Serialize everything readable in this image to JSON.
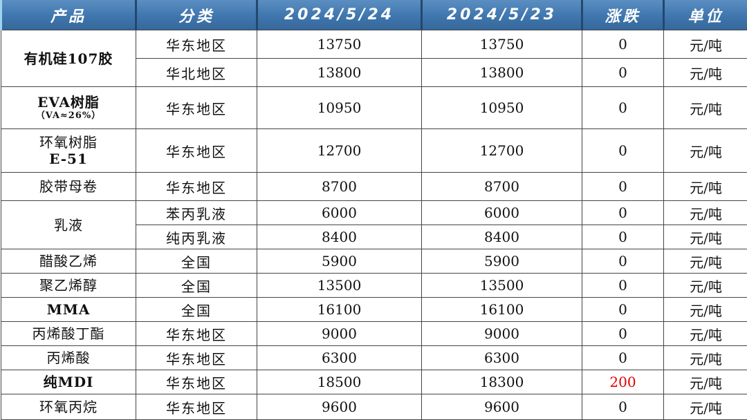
{
  "headers": [
    "产品",
    "分类",
    "2024/5/24",
    "2024/5/23",
    "涨跌",
    "单位"
  ],
  "rows": [
    {
      "product": "有机硅107胶",
      "entries": [
        {
          "region": "华东地区",
          "cur": "13750",
          "prev": "13750",
          "chg": "0",
          "unit": "元/吨"
        },
        {
          "region": "华北地区",
          "cur": "13800",
          "prev": "13800",
          "chg": "0",
          "unit": "元/吨"
        }
      ]
    },
    {
      "product": "EVA树脂",
      "product_sub": "（VA≈26%）",
      "entries": [
        {
          "region": "华东地区",
          "cur": "10950",
          "prev": "10950",
          "chg": "0",
          "unit": "元/吨"
        }
      ]
    },
    {
      "product": "环氧树脂",
      "product_sub2": "E-51",
      "entries": [
        {
          "region": "华东地区",
          "cur": "12700",
          "prev": "12700",
          "chg": "0",
          "unit": "元/吨"
        }
      ]
    },
    {
      "product": "胶带母卷",
      "entries": [
        {
          "region": "华东地区",
          "cur": "8700",
          "prev": "8700",
          "chg": "0",
          "unit": "元/吨"
        }
      ]
    },
    {
      "product": "乳液",
      "entries": [
        {
          "region": "苯丙乳液",
          "cur": "6000",
          "prev": "6000",
          "chg": "0",
          "unit": "元/吨"
        },
        {
          "region": "纯丙乳液",
          "cur": "8400",
          "prev": "8400",
          "chg": "0",
          "unit": "元/吨"
        }
      ]
    },
    {
      "product": "醋酸乙烯",
      "entries": [
        {
          "region": "全国",
          "cur": "5900",
          "prev": "5900",
          "chg": "0",
          "unit": "元/吨"
        }
      ]
    },
    {
      "product": "聚乙烯醇",
      "entries": [
        {
          "region": "全国",
          "cur": "13500",
          "prev": "13500",
          "chg": "0",
          "unit": "元/吨"
        }
      ]
    },
    {
      "product": "MMA",
      "entries": [
        {
          "region": "全国",
          "cur": "16100",
          "prev": "16100",
          "chg": "0",
          "unit": "元/吨"
        }
      ]
    },
    {
      "product": "丙烯酸丁酯",
      "entries": [
        {
          "region": "华东地区",
          "cur": "9000",
          "prev": "9000",
          "chg": "0",
          "unit": "元/吨"
        }
      ]
    },
    {
      "product": "丙烯酸",
      "entries": [
        {
          "region": "华东地区",
          "cur": "6300",
          "prev": "6300",
          "chg": "0",
          "unit": "元/吨"
        }
      ]
    },
    {
      "product": "纯MDI",
      "entries": [
        {
          "region": "华东地区",
          "cur": "18500",
          "prev": "18300",
          "chg": "200",
          "unit": "元/吨",
          "up": true
        }
      ]
    },
    {
      "product": "环氧丙烷",
      "entries": [
        {
          "region": "华东地区",
          "cur": "9600",
          "prev": "9600",
          "chg": "0",
          "unit": "元/吨"
        }
      ]
    }
  ],
  "colors": {
    "header_bg": "#3f76ad",
    "header_text": "#ffffff",
    "rise": "#e00000"
  }
}
